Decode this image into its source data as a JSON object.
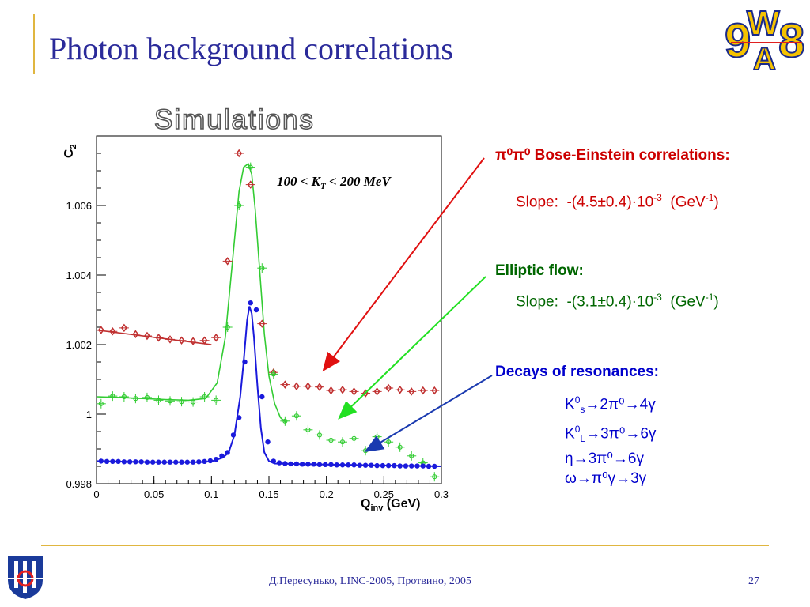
{
  "slide": {
    "title": "Photon background correlations",
    "subtitle": "Simulations",
    "footer": "Д.Пересунько, LINC-2005, Протвино, 2005",
    "page_number": "27",
    "logo_text": "WA98"
  },
  "annotations": {
    "bose": {
      "heading_prefix": "π⁰π⁰",
      "heading": "Bose-Einstein correlations:",
      "slope_label": "Slope:",
      "slope_value": "-(4.5±0.4)·10",
      "slope_exp": "-3",
      "unit": "(GeV",
      "unit_exp": "-1",
      "unit_close": ")"
    },
    "elliptic": {
      "heading": "Elliptic flow:",
      "slope_label": "Slope:",
      "slope_value": "-(3.1±0.4)·10",
      "slope_exp": "-3",
      "unit": "(GeV",
      "unit_exp": "-1",
      "unit_close": ")"
    },
    "decays": {
      "heading": "Decays of resonances:",
      "lines": [
        {
          "pre": "K",
          "sup": "0",
          "sub": "s",
          "rest": "→2π⁰→4γ"
        },
        {
          "pre": "K",
          "sup": "0",
          "sub": "L",
          "rest": "→3π⁰→6γ"
        },
        {
          "pre": "η",
          "sup": "",
          "sub": "",
          "rest": "→3π⁰→6γ"
        },
        {
          "pre": "ω",
          "sup": "",
          "sub": "",
          "rest": "→π⁰γ→3γ"
        }
      ]
    }
  },
  "chart_data": {
    "type": "scatter",
    "annotation": "100 < K",
    "annotation_sub": "T",
    "annotation_rest": " < 200 MeV",
    "ylabel": "C",
    "ylabel_sub": "2",
    "xlabel": "Q",
    "xlabel_sub": "inv",
    "xlabel_unit": " (GeV)",
    "xlim": [
      0,
      0.3
    ],
    "ylim": [
      0.998,
      1.008
    ],
    "x_ticks": [
      {
        "v": 0,
        "label": "0"
      },
      {
        "v": 0.05,
        "label": "0.05"
      },
      {
        "v": 0.1,
        "label": "0.1"
      },
      {
        "v": 0.15,
        "label": "0.15"
      },
      {
        "v": 0.2,
        "label": "0.2"
      },
      {
        "v": 0.25,
        "label": "0.25"
      },
      {
        "v": 0.3,
        "label": "0.3"
      }
    ],
    "y_ticks": [
      {
        "v": 0.998,
        "label": "0.998"
      },
      {
        "v": 1.0,
        "label": "1"
      },
      {
        "v": 1.002,
        "label": "1.002"
      },
      {
        "v": 1.004,
        "label": "1.004"
      },
      {
        "v": 1.006,
        "label": "1.006"
      }
    ],
    "series": [
      {
        "color": "#c03030",
        "marker": "diamond",
        "x": [
          0.004,
          0.014,
          0.024,
          0.034,
          0.044,
          0.054,
          0.064,
          0.074,
          0.084,
          0.094,
          0.104,
          0.114,
          0.124,
          0.134,
          0.144,
          0.154,
          0.164,
          0.174,
          0.184,
          0.194,
          0.204,
          0.214,
          0.224,
          0.234,
          0.244,
          0.254,
          0.264,
          0.274,
          0.284,
          0.294
        ],
        "y": [
          1.00242,
          1.00238,
          1.00248,
          1.0023,
          1.00225,
          1.0022,
          1.00215,
          1.00212,
          1.0021,
          1.00212,
          1.0022,
          1.0044,
          1.0075,
          1.0066,
          1.0026,
          1.0012,
          1.00085,
          1.0008,
          1.0008,
          1.00078,
          1.00068,
          1.0007,
          1.00065,
          1.0006,
          1.00065,
          1.00075,
          1.0007,
          1.00065,
          1.00068,
          1.00068
        ],
        "fit_x": [
          0,
          0.1
        ],
        "fit_y": [
          1.00242,
          1.002
        ]
      },
      {
        "color": "#33cc33",
        "marker": "cross",
        "x": [
          0.004,
          0.014,
          0.024,
          0.034,
          0.044,
          0.054,
          0.064,
          0.074,
          0.084,
          0.094,
          0.104,
          0.114,
          0.124,
          0.134,
          0.144,
          0.154,
          0.164,
          0.174,
          0.184,
          0.194,
          0.204,
          0.214,
          0.224,
          0.234,
          0.244,
          0.254,
          0.264,
          0.274,
          0.284,
          0.294
        ],
        "y": [
          1.0003,
          1.00052,
          1.0005,
          1.00045,
          1.00048,
          1.0004,
          1.00038,
          1.00036,
          1.00035,
          1.0005,
          1.0004,
          1.0025,
          1.006,
          1.0071,
          1.0042,
          1.00115,
          0.9998,
          0.99995,
          0.99955,
          0.9994,
          0.99925,
          0.9992,
          0.9993,
          0.99895,
          0.99935,
          0.9992,
          0.99905,
          0.9988,
          0.9986,
          0.9982
        ],
        "fit_x": [
          0.0,
          0.02,
          0.04,
          0.06,
          0.08,
          0.095,
          0.105,
          0.112,
          0.118,
          0.124,
          0.128,
          0.132,
          0.135,
          0.138,
          0.142,
          0.146,
          0.15,
          0.155,
          0.16,
          0.165
        ],
        "fit_y": [
          1.0005,
          1.00048,
          1.00045,
          1.00042,
          1.0004,
          1.00045,
          1.0009,
          1.0022,
          1.0043,
          1.0064,
          1.0071,
          1.0072,
          1.0069,
          1.0059,
          1.0041,
          1.0023,
          1.0011,
          1.0003,
          0.9999,
          0.99975
        ]
      },
      {
        "color": "#1a1adc",
        "marker": "dot",
        "x": [
          0.004,
          0.009,
          0.014,
          0.019,
          0.024,
          0.029,
          0.034,
          0.039,
          0.044,
          0.049,
          0.054,
          0.059,
          0.064,
          0.069,
          0.074,
          0.079,
          0.084,
          0.089,
          0.094,
          0.099,
          0.104,
          0.109,
          0.114,
          0.119,
          0.124,
          0.129,
          0.134,
          0.139,
          0.144,
          0.149,
          0.154,
          0.159,
          0.164,
          0.169,
          0.174,
          0.179,
          0.184,
          0.189,
          0.194,
          0.199,
          0.204,
          0.209,
          0.214,
          0.219,
          0.224,
          0.229,
          0.234,
          0.239,
          0.244,
          0.249,
          0.254,
          0.259,
          0.264,
          0.269,
          0.274,
          0.279,
          0.284,
          0.289,
          0.294
        ],
        "y": [
          0.99865,
          0.99864,
          0.99864,
          0.99864,
          0.99863,
          0.99863,
          0.99863,
          0.99863,
          0.99862,
          0.99862,
          0.99862,
          0.99862,
          0.99862,
          0.99862,
          0.99862,
          0.99862,
          0.99862,
          0.99863,
          0.99864,
          0.99866,
          0.9987,
          0.9988,
          0.9989,
          0.9994,
          0.9999,
          1.0015,
          1.0032,
          1.003,
          1.0005,
          0.9992,
          0.99865,
          0.9986,
          0.99858,
          0.99857,
          0.99857,
          0.99856,
          0.99856,
          0.99856,
          0.99855,
          0.99855,
          0.99855,
          0.99854,
          0.99854,
          0.99854,
          0.99854,
          0.99853,
          0.99853,
          0.99853,
          0.99852,
          0.99852,
          0.99852,
          0.99852,
          0.99851,
          0.99851,
          0.99851,
          0.99851,
          0.99851,
          0.9985,
          0.9985
        ],
        "fit_x": [
          0.0,
          0.05,
          0.09,
          0.1,
          0.11,
          0.115,
          0.12,
          0.125,
          0.128,
          0.131,
          0.133,
          0.135,
          0.137,
          0.14,
          0.143,
          0.146,
          0.15,
          0.155,
          0.2,
          0.3
        ],
        "fit_y": [
          0.99865,
          0.99862,
          0.99862,
          0.99864,
          0.99875,
          0.9989,
          0.9994,
          1.0005,
          1.0015,
          1.0027,
          1.0031,
          1.0029,
          1.0022,
          1.0008,
          0.9996,
          0.9989,
          0.99865,
          0.99858,
          0.99855,
          0.9985
        ]
      }
    ]
  }
}
